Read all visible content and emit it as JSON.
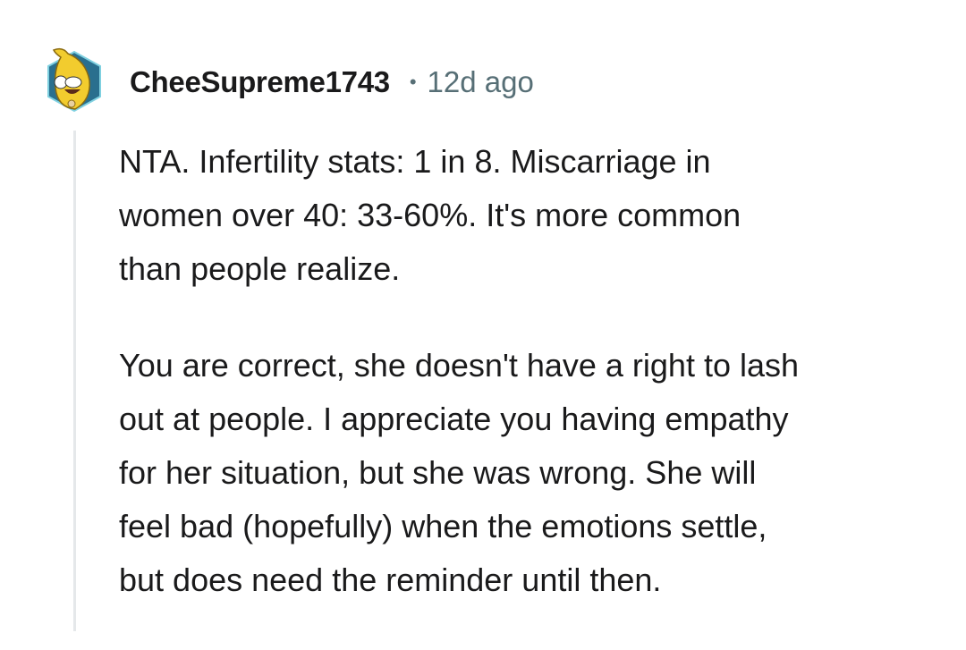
{
  "comment": {
    "username": "CheeSupreme1743",
    "separator": "•",
    "timestamp": "12d ago",
    "avatar_icon": "banana-avatar-icon",
    "paragraphs": [
      {
        "lines": [
          "NTA. Infertility stats: 1 in 8. Miscarriage in",
          "women over 40: 33-60%. It's more common",
          "than people realize."
        ]
      },
      {
        "lines": [
          "You are correct, she doesn't have a right to lash",
          "out at people. I appreciate you having empathy",
          "for her situation, but she was wrong. She will",
          "feel bad (hopefully) when the emotions settle,",
          "but does need the reminder until then."
        ]
      }
    ]
  },
  "colors": {
    "text": "#1a1a1b",
    "meta": "#576f76",
    "avatar_bg": "#2a6f8e",
    "avatar_fg": "#f2cc2e"
  }
}
